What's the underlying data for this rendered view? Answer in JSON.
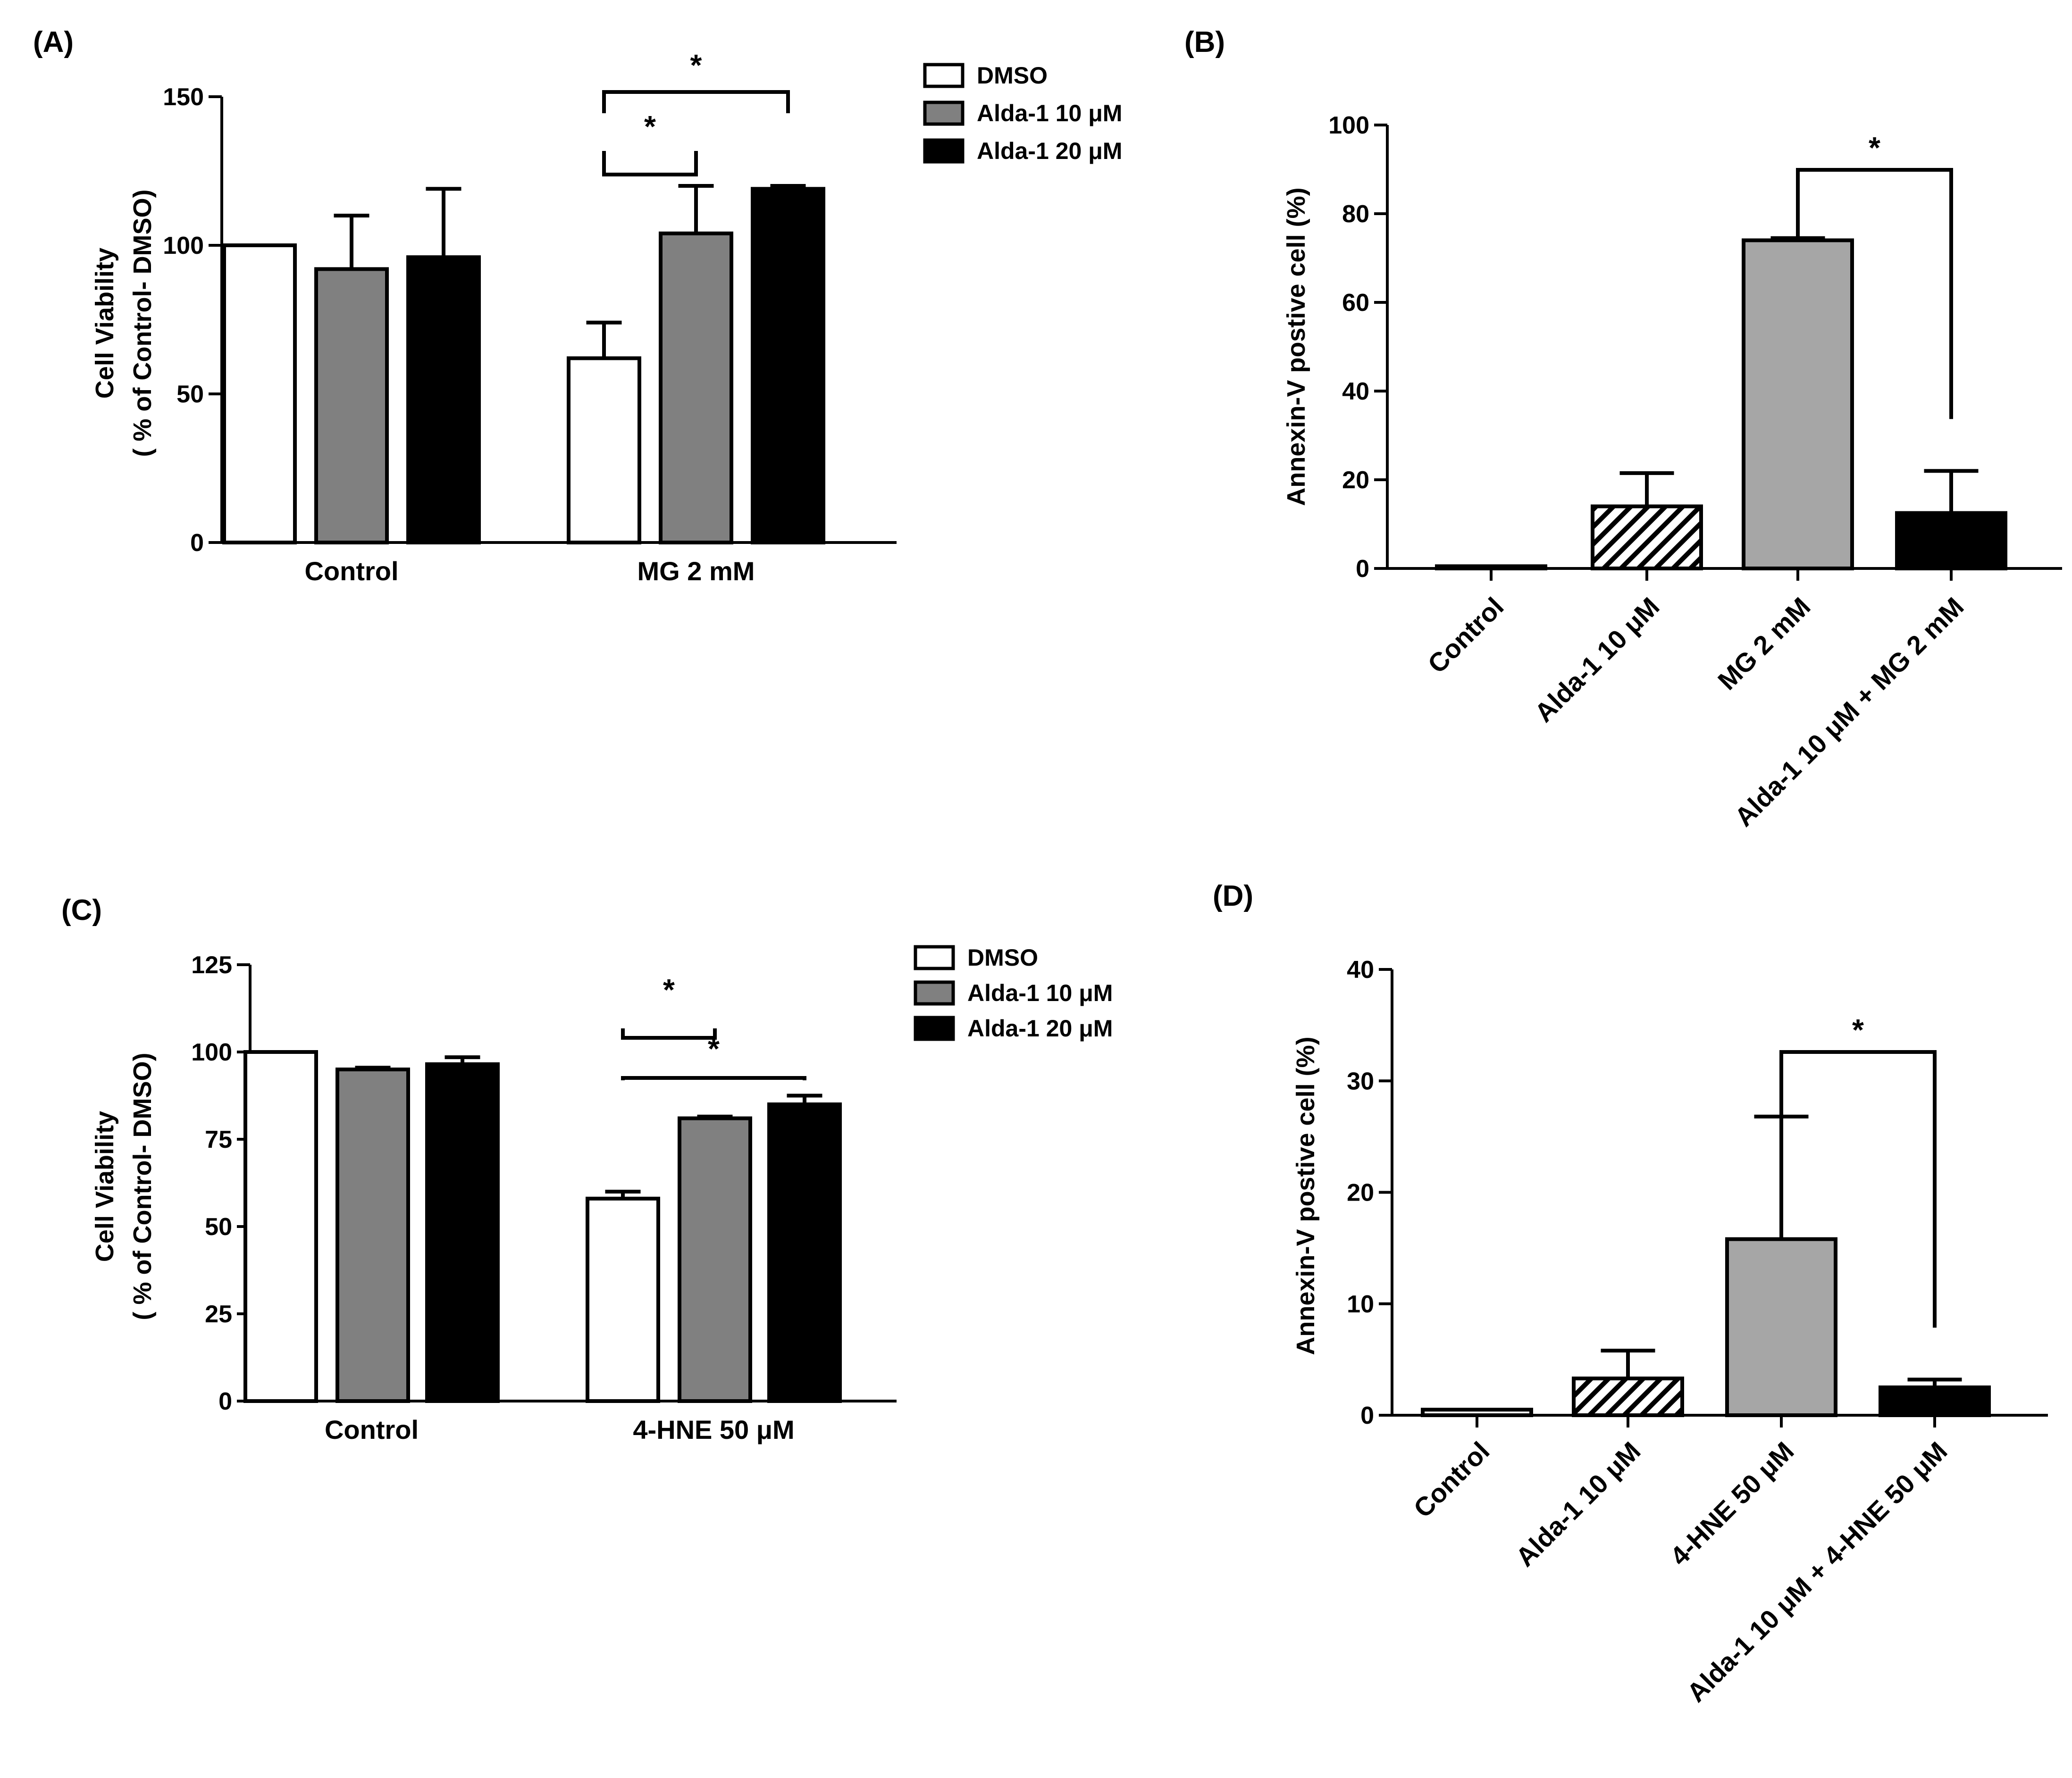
{
  "chart_data": [
    {
      "panel": "(A)",
      "type": "bar",
      "ylabel": [
        "Cell Viability",
        "( % of Control- DMSO)"
      ],
      "ylim": [
        0,
        150
      ],
      "yticks": [
        0,
        50,
        100,
        150
      ],
      "groups": [
        "Control",
        "MG 2 mM"
      ],
      "series": [
        {
          "name": "DMSO",
          "fill": "#ffffff",
          "values": [
            100,
            62
          ],
          "errors": [
            0,
            12
          ]
        },
        {
          "name": "Alda-1 10 μM",
          "fill": "#808080",
          "values": [
            92,
            104
          ],
          "errors": [
            18,
            16
          ]
        },
        {
          "name": "Alda-1 20 μM",
          "fill": "#000000",
          "values": [
            96,
            119
          ],
          "errors": [
            23,
            1
          ]
        }
      ],
      "legend_position": "top-right",
      "significance": [
        {
          "group": 1,
          "from": 0,
          "to": 1,
          "label": "*"
        },
        {
          "group": 1,
          "from": 0,
          "to": 2,
          "label": "*"
        }
      ]
    },
    {
      "panel": "(B)",
      "type": "bar",
      "ylabel": [
        "Annexin-V postive cell (%)"
      ],
      "ylim": [
        0,
        100
      ],
      "yticks": [
        0,
        20,
        40,
        60,
        80,
        100
      ],
      "categories": [
        "Control",
        "Alda-1 10 μM",
        "MG 2 mM",
        "Alda-1 10 μM + MG 2 mM"
      ],
      "values": [
        0.5,
        14,
        74,
        12.5
      ],
      "errors": [
        0,
        7.5,
        0.5,
        9.5
      ],
      "fills": [
        "#ffffff",
        "hatch",
        "#a6a6a6",
        "#000000"
      ],
      "significance": [
        {
          "from": 2,
          "to": 3,
          "label": "*"
        }
      ]
    },
    {
      "panel": "(C)",
      "type": "bar",
      "ylabel": [
        "Cell Viability",
        "( % of Control- DMSO)"
      ],
      "ylim": [
        0,
        125
      ],
      "yticks": [
        0,
        25,
        50,
        75,
        100,
        125
      ],
      "groups": [
        "Control",
        "4-HNE 50 μM"
      ],
      "series": [
        {
          "name": "DMSO",
          "fill": "#ffffff",
          "values": [
            100,
            58
          ],
          "errors": [
            0,
            2
          ]
        },
        {
          "name": "Alda-1 10 μM",
          "fill": "#808080",
          "values": [
            95,
            81
          ],
          "errors": [
            0.5,
            0.5
          ]
        },
        {
          "name": "Alda-1 20 μM",
          "fill": "#000000",
          "values": [
            96.5,
            85
          ],
          "errors": [
            2,
            2.5
          ]
        }
      ],
      "legend_position": "top-right",
      "significance": [
        {
          "group": 1,
          "from": 0,
          "to": 1,
          "label": "*"
        },
        {
          "group": 1,
          "from": 0,
          "to": 2,
          "label": "*"
        }
      ]
    },
    {
      "panel": "(D)",
      "type": "bar",
      "ylabel": [
        "Annexin-V postive cell (%)"
      ],
      "ylim": [
        0,
        40
      ],
      "yticks": [
        0,
        10,
        20,
        30,
        40
      ],
      "categories": [
        "Control",
        "Alda-1 10 μM",
        "4-HNE 50 μM",
        "Alda-1 10 μM + 4-HNE 50 μM"
      ],
      "values": [
        0.5,
        3.3,
        15.8,
        2.5
      ],
      "errors": [
        0,
        2.5,
        11,
        0.7
      ],
      "fills": [
        "#ffffff",
        "hatch",
        "#a6a6a6",
        "#000000"
      ],
      "significance": [
        {
          "from": 2,
          "to": 3,
          "label": "*"
        }
      ]
    }
  ]
}
